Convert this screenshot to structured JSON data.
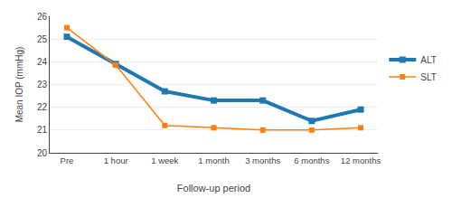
{
  "chart_data": {
    "type": "line",
    "categories": [
      "Pre",
      "1 hour",
      "1 week",
      "1 month",
      "3 months",
      "6 months",
      "12 months"
    ],
    "series": [
      {
        "name": "ALT",
        "values": [
          25.1,
          23.9,
          22.7,
          22.3,
          22.3,
          21.4,
          21.9
        ],
        "marker": "square"
      },
      {
        "name": "SLT",
        "values": [
          25.5,
          23.85,
          21.2,
          21.1,
          21.0,
          21.0,
          21.1
        ],
        "marker": "square"
      }
    ],
    "xlabel": "Follow-up period",
    "ylabel": "Mean IOP (mmHg)",
    "ylim": [
      20,
      26
    ],
    "yticks": [
      20,
      21,
      22,
      23,
      24,
      25,
      26
    ],
    "grid": true,
    "legend": "right"
  }
}
